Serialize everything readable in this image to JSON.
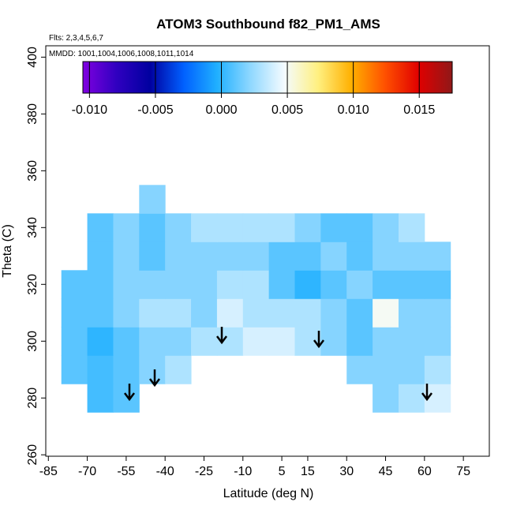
{
  "chart_data": {
    "type": "heatmap",
    "title": "ATOM3 Southbound f82_PM1_AMS",
    "subtitle": "Flts: 2,3,4,5,6,7",
    "annotation": "MMDD: 1001,1004,1006,1008,1011,1014",
    "x_label": "Latitude (deg N)",
    "y_label": "Theta (C)",
    "xlim": [
      -86,
      85
    ],
    "ylim": [
      259.5,
      404
    ],
    "xticks": [
      -85,
      -70,
      -55,
      -40,
      -25,
      -10,
      5,
      15,
      30,
      45,
      60,
      75
    ],
    "yticks": [
      260,
      280,
      300,
      320,
      340,
      360,
      380,
      400
    ],
    "x_edges": [
      -80,
      -70,
      -60,
      -50,
      -40,
      -30,
      -20,
      -10,
      0,
      10,
      20,
      30,
      40,
      50,
      60,
      70
    ],
    "y_edges": [
      275,
      285,
      295,
      305,
      315,
      325,
      335,
      345,
      355
    ],
    "z": [
      [
        null,
        0.0005,
        0.001,
        null,
        null,
        null,
        null,
        null,
        null,
        null,
        null,
        null,
        0.002,
        0.003,
        0.004
      ],
      [
        0.001,
        0.0005,
        0.001,
        0.002,
        0.003,
        null,
        null,
        null,
        null,
        null,
        null,
        0.002,
        0.002,
        0.002,
        0.003
      ],
      [
        0.001,
        0.0,
        0.001,
        0.002,
        0.002,
        0.003,
        0.003,
        0.004,
        0.004,
        0.003,
        0.002,
        0.001,
        0.002,
        0.002,
        0.002
      ],
      [
        0.001,
        0.001,
        0.002,
        0.003,
        0.003,
        0.002,
        0.004,
        0.003,
        0.003,
        0.003,
        0.002,
        0.001,
        0.005,
        0.002,
        0.002
      ],
      [
        0.001,
        0.001,
        0.002,
        0.002,
        0.002,
        0.002,
        0.003,
        0.003,
        0.001,
        0.0,
        0.001,
        0.002,
        0.001,
        0.001,
        0.001
      ],
      [
        null,
        0.001,
        0.002,
        0.001,
        0.002,
        0.002,
        0.002,
        0.002,
        0.001,
        0.001,
        0.002,
        0.001,
        0.002,
        0.002,
        0.002
      ],
      [
        null,
        0.001,
        0.002,
        0.001,
        0.002,
        0.003,
        0.003,
        0.003,
        0.003,
        0.002,
        0.001,
        0.001,
        0.002,
        0.003,
        null
      ],
      [
        null,
        null,
        null,
        0.002,
        null,
        null,
        null,
        null,
        null,
        null,
        null,
        null,
        null,
        null,
        null
      ]
    ],
    "clim": [
      -0.0105,
      0.0175
    ],
    "colorbar_ticks": [
      {
        "value": -0.01,
        "label": "-0.010"
      },
      {
        "value": -0.005,
        "label": "-0.005"
      },
      {
        "value": 0,
        "label": "0.000"
      },
      {
        "value": 0.005,
        "label": "0.005"
      },
      {
        "value": 0.01,
        "label": "0.010"
      },
      {
        "value": 0.015,
        "label": "0.015"
      }
    ],
    "colors": [
      "#8000e0",
      "#3000c0",
      "#0000a0",
      "#0060ff",
      "#20b0ff",
      "#90d8ff",
      "#f4fbff",
      "#fff080",
      "#ffb000",
      "#ff5000",
      "#e00000",
      "#901818"
    ]
  }
}
